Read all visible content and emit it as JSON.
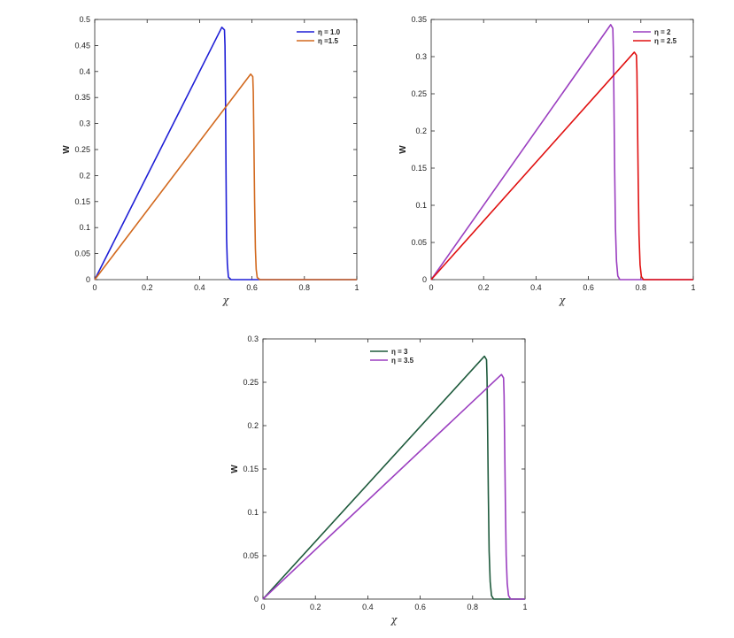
{
  "chart_data": [
    {
      "type": "line",
      "xlabel": "χ",
      "ylabel": "W",
      "xlim": [
        0,
        1
      ],
      "ylim": [
        0,
        0.5
      ],
      "xticks": [
        "0",
        "0.2",
        "0.4",
        "0.6",
        "0.8",
        "1"
      ],
      "yticks": [
        "0",
        "0.05",
        "0.1",
        "0.15",
        "0.2",
        "0.25",
        "0.3",
        "0.35",
        "0.4",
        "0.45",
        "0.5"
      ],
      "legend_position": "top-right",
      "grid": false,
      "series": [
        {
          "name": "η = 1.0",
          "color": "#1f1fd6",
          "x": [
            0,
            0.485,
            0.495,
            0.497,
            0.499,
            0.501,
            0.503,
            0.506,
            0.51,
            0.52,
            1.0
          ],
          "y": [
            0,
            0.485,
            0.48,
            0.45,
            0.35,
            0.2,
            0.08,
            0.03,
            0.005,
            0,
            0
          ]
        },
        {
          "name": "η =1.5",
          "color": "#d2691e",
          "x": [
            0,
            0.595,
            0.603,
            0.605,
            0.607,
            0.61,
            0.613,
            0.616,
            0.62,
            0.63,
            1.0
          ],
          "y": [
            0,
            0.395,
            0.39,
            0.36,
            0.28,
            0.15,
            0.06,
            0.02,
            0.004,
            0,
            0
          ]
        }
      ]
    },
    {
      "type": "line",
      "xlabel": "χ",
      "ylabel": "W",
      "xlim": [
        0,
        1
      ],
      "ylim": [
        0,
        0.35
      ],
      "xticks": [
        "0",
        "0.2",
        "0.4",
        "0.6",
        "0.8",
        "1"
      ],
      "yticks": [
        "0",
        "0.05",
        "0.1",
        "0.15",
        "0.2",
        "0.25",
        "0.3",
        "0.35"
      ],
      "legend_position": "top-right",
      "grid": false,
      "series": [
        {
          "name": "η = 2",
          "color": "#9b3fc0",
          "x": [
            0,
            0.685,
            0.693,
            0.695,
            0.697,
            0.7,
            0.703,
            0.707,
            0.712,
            0.72,
            1.0
          ],
          "y": [
            0,
            0.343,
            0.338,
            0.31,
            0.25,
            0.15,
            0.07,
            0.025,
            0.005,
            0,
            0
          ]
        },
        {
          "name": "η = 2.5",
          "color": "#e01010",
          "x": [
            0,
            0.775,
            0.783,
            0.785,
            0.787,
            0.79,
            0.793,
            0.797,
            0.802,
            0.81,
            1.0
          ],
          "y": [
            0,
            0.306,
            0.302,
            0.28,
            0.22,
            0.13,
            0.06,
            0.02,
            0.004,
            0,
            0
          ]
        }
      ]
    },
    {
      "type": "line",
      "xlabel": "χ",
      "ylabel": "W",
      "xlim": [
        0,
        1
      ],
      "ylim": [
        0,
        0.3
      ],
      "xticks": [
        "0",
        "0.2",
        "0.4",
        "0.6",
        "0.8",
        "1"
      ],
      "yticks": [
        "0",
        "0.05",
        "0.1",
        "0.15",
        "0.2",
        "0.25",
        "0.3"
      ],
      "legend_position": "top-center",
      "grid": false,
      "series": [
        {
          "name": "η = 3",
          "color": "#1e5a3c",
          "x": [
            0,
            0.845,
            0.853,
            0.855,
            0.857,
            0.86,
            0.863,
            0.867,
            0.872,
            0.88,
            1.0
          ],
          "y": [
            0,
            0.28,
            0.276,
            0.255,
            0.2,
            0.12,
            0.055,
            0.02,
            0.004,
            0,
            0
          ]
        },
        {
          "name": "η = 3.5",
          "color": "#9b3fc0",
          "x": [
            0,
            0.91,
            0.918,
            0.92,
            0.922,
            0.925,
            0.928,
            0.932,
            0.937,
            0.945,
            1.0
          ],
          "y": [
            0,
            0.259,
            0.255,
            0.235,
            0.185,
            0.11,
            0.05,
            0.018,
            0.004,
            0,
            0
          ]
        }
      ]
    }
  ]
}
